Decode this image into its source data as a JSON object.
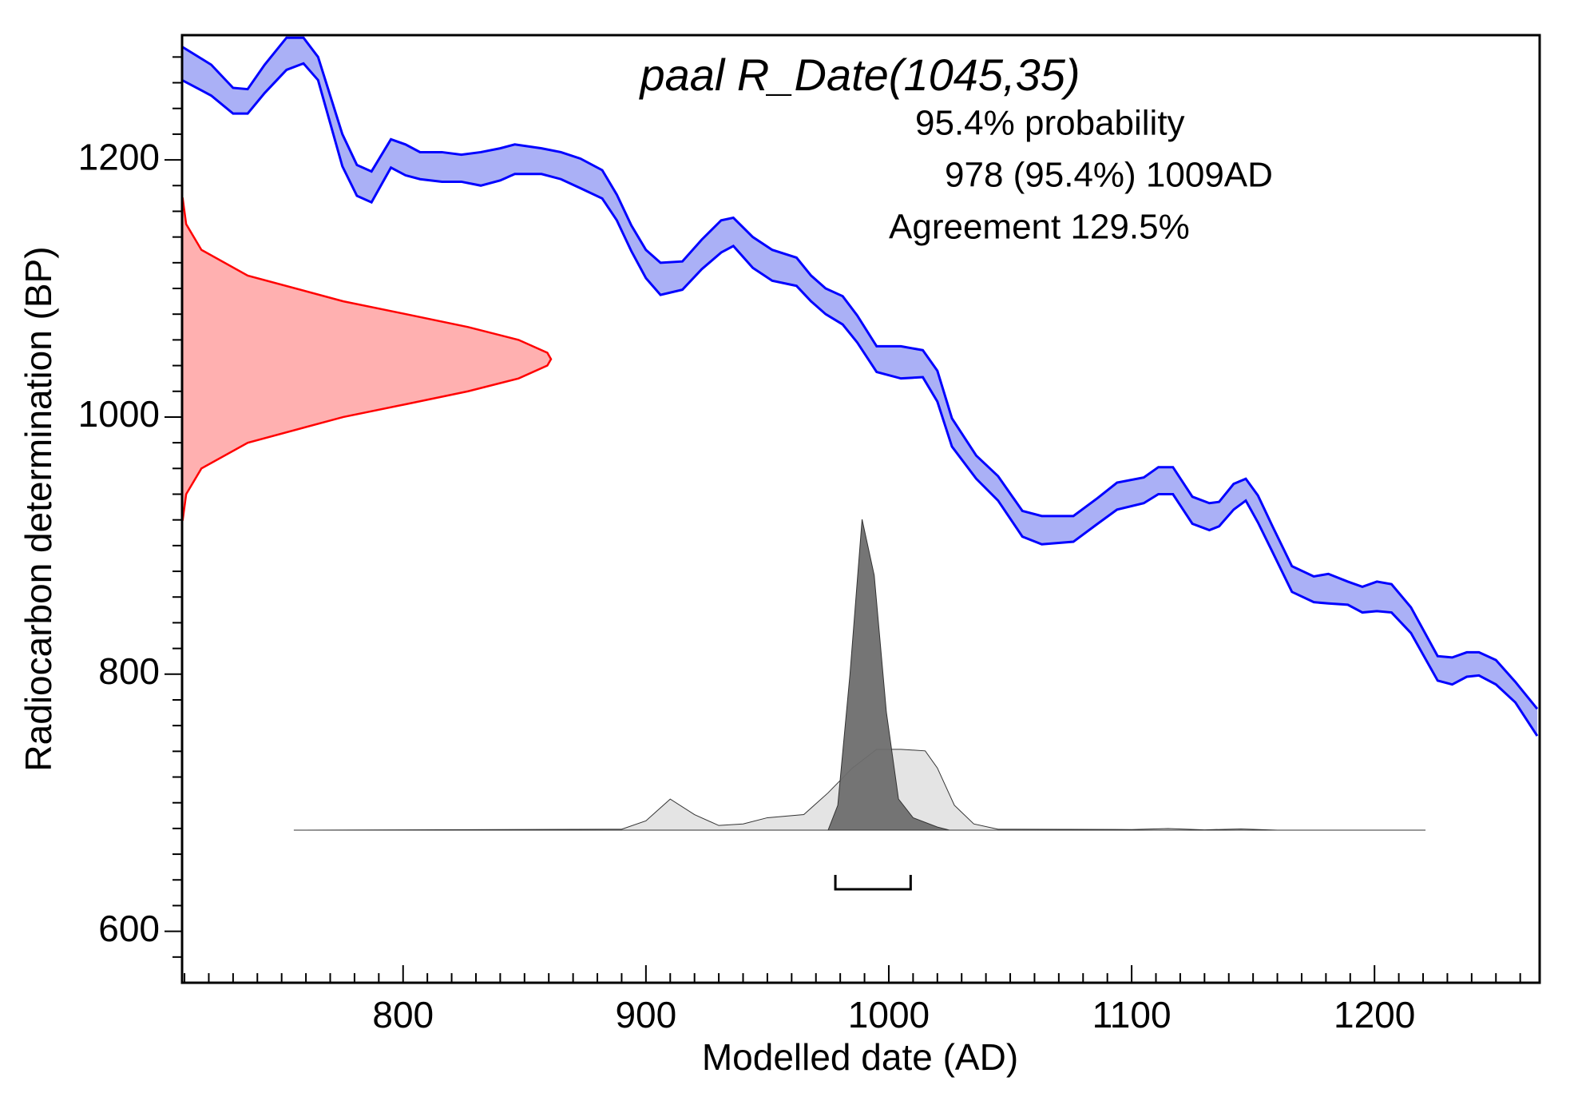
{
  "chart_data": {
    "type": "calibration",
    "title": "paal R_Date(1045,35)",
    "annotations": [
      "95.4% probability",
      "978 (95.4%) 1009AD",
      "Agreement 129.5%"
    ],
    "xlabel": "Modelled date (AD)",
    "ylabel": "Radiocarbon determination (BP)",
    "xlim": [
      709,
      1268
    ],
    "ylim": [
      560,
      1297
    ],
    "xticks": [
      800,
      900,
      1000,
      1100,
      1200
    ],
    "yticks": [
      600,
      800,
      1000,
      1200
    ],
    "xminorticks": [
      710,
      720,
      730,
      740,
      750,
      760,
      770,
      780,
      790,
      810,
      820,
      830,
      840,
      850,
      860,
      870,
      880,
      890,
      910,
      920,
      930,
      940,
      950,
      960,
      970,
      980,
      990,
      1010,
      1020,
      1030,
      1040,
      1050,
      1060,
      1070,
      1080,
      1090,
      1110,
      1120,
      1130,
      1140,
      1150,
      1160,
      1170,
      1180,
      1190,
      1210,
      1220,
      1230,
      1240,
      1250,
      1260
    ],
    "yminorticks": [
      580,
      620,
      640,
      660,
      680,
      700,
      720,
      740,
      760,
      780,
      820,
      840,
      860,
      880,
      900,
      920,
      940,
      960,
      980,
      1020,
      1040,
      1060,
      1080,
      1100,
      1120,
      1140,
      1160,
      1180,
      1220,
      1240,
      1260,
      1280
    ],
    "curve": {
      "color": "#0000ff",
      "fill": "#aab0f6",
      "x": [
        709,
        721,
        730,
        736,
        743,
        752,
        759,
        765,
        775,
        781,
        787,
        795,
        801,
        807,
        816,
        824,
        832,
        840,
        846,
        857,
        865,
        873,
        882,
        888,
        894,
        900,
        906,
        915,
        923,
        931,
        936,
        944,
        952,
        962,
        968,
        974,
        981,
        987,
        995,
        1005,
        1014,
        1020,
        1026,
        1036,
        1045,
        1055,
        1063,
        1076,
        1086,
        1094,
        1105,
        1111,
        1117,
        1125,
        1132,
        1136,
        1142,
        1147,
        1152,
        1158,
        1166,
        1175,
        1181,
        1189,
        1195,
        1201,
        1207,
        1215,
        1226,
        1232,
        1238,
        1243,
        1250,
        1258,
        1267
      ],
      "upper": [
        1288,
        1274,
        1256,
        1255,
        1274,
        1295,
        1295,
        1280,
        1220,
        1196,
        1191,
        1216,
        1212,
        1206,
        1206,
        1204,
        1206,
        1209,
        1212,
        1209,
        1206,
        1201,
        1192,
        1173,
        1149,
        1130,
        1120,
        1121,
        1138,
        1153,
        1155,
        1140,
        1130,
        1124,
        1110,
        1100,
        1094,
        1079,
        1055,
        1055,
        1052,
        1036,
        999,
        970,
        954,
        927,
        923,
        923,
        937,
        949,
        953,
        961,
        961,
        938,
        933,
        934,
        948,
        952,
        939,
        915,
        884,
        876,
        878,
        872,
        868,
        872,
        870,
        852,
        814,
        813,
        817,
        817,
        811,
        794,
        773
      ],
      "lower": [
        1262,
        1250,
        1236,
        1236,
        1252,
        1270,
        1275,
        1262,
        1195,
        1172,
        1167,
        1194,
        1188,
        1185,
        1183,
        1183,
        1180,
        1184,
        1189,
        1189,
        1185,
        1178,
        1170,
        1153,
        1129,
        1108,
        1095,
        1099,
        1115,
        1128,
        1133,
        1116,
        1106,
        1102,
        1090,
        1080,
        1072,
        1058,
        1035,
        1030,
        1031,
        1012,
        977,
        952,
        935,
        907,
        901,
        903,
        917,
        928,
        933,
        940,
        940,
        917,
        912,
        915,
        928,
        935,
        918,
        895,
        864,
        856,
        855,
        854,
        848,
        849,
        848,
        832,
        795,
        792,
        798,
        799,
        792,
        778,
        752
      ]
    },
    "measurement": {
      "color": "#ff0000",
      "fill": "#ffb0b0",
      "bp": [
        920,
        940,
        960,
        980,
        1000,
        1010,
        1020,
        1030,
        1040,
        1045,
        1050,
        1060,
        1070,
        1080,
        1090,
        1110,
        1130,
        1150,
        1170
      ],
      "density": [
        0.0017,
        0.0111,
        0.0524,
        0.178,
        0.437,
        0.607,
        0.775,
        0.912,
        0.99,
        1,
        0.99,
        0.912,
        0.775,
        0.607,
        0.437,
        0.178,
        0.0524,
        0.0111,
        0.0017
      ]
    },
    "distributions": [
      {
        "name": "prior",
        "fill": "#e4e4e4",
        "x": [
          755,
          890,
          900,
          910,
          920,
          930,
          940,
          950,
          965,
          975,
          985,
          995,
          1005,
          1015,
          1020,
          1027,
          1035,
          1045,
          1100,
          1115,
          1130,
          1145,
          1160,
          1221
        ],
        "values": [
          0,
          0.003,
          0.03,
          0.1,
          0.05,
          0.015,
          0.02,
          0.04,
          0.05,
          0.12,
          0.2,
          0.26,
          0.26,
          0.255,
          0.2,
          0.08,
          0.02,
          0.003,
          0.002,
          0.005,
          0.001,
          0.004,
          0,
          0
        ]
      },
      {
        "name": "posterior",
        "fill": "#6e6e6e",
        "x": [
          975,
          979,
          984,
          989,
          994,
          999,
          1004,
          1010,
          1020,
          1025
        ],
        "values": [
          0,
          0.08,
          0.5,
          1,
          0.82,
          0.38,
          0.1,
          0.04,
          0.01,
          0
        ]
      }
    ],
    "range": [
      978,
      1009
    ]
  }
}
